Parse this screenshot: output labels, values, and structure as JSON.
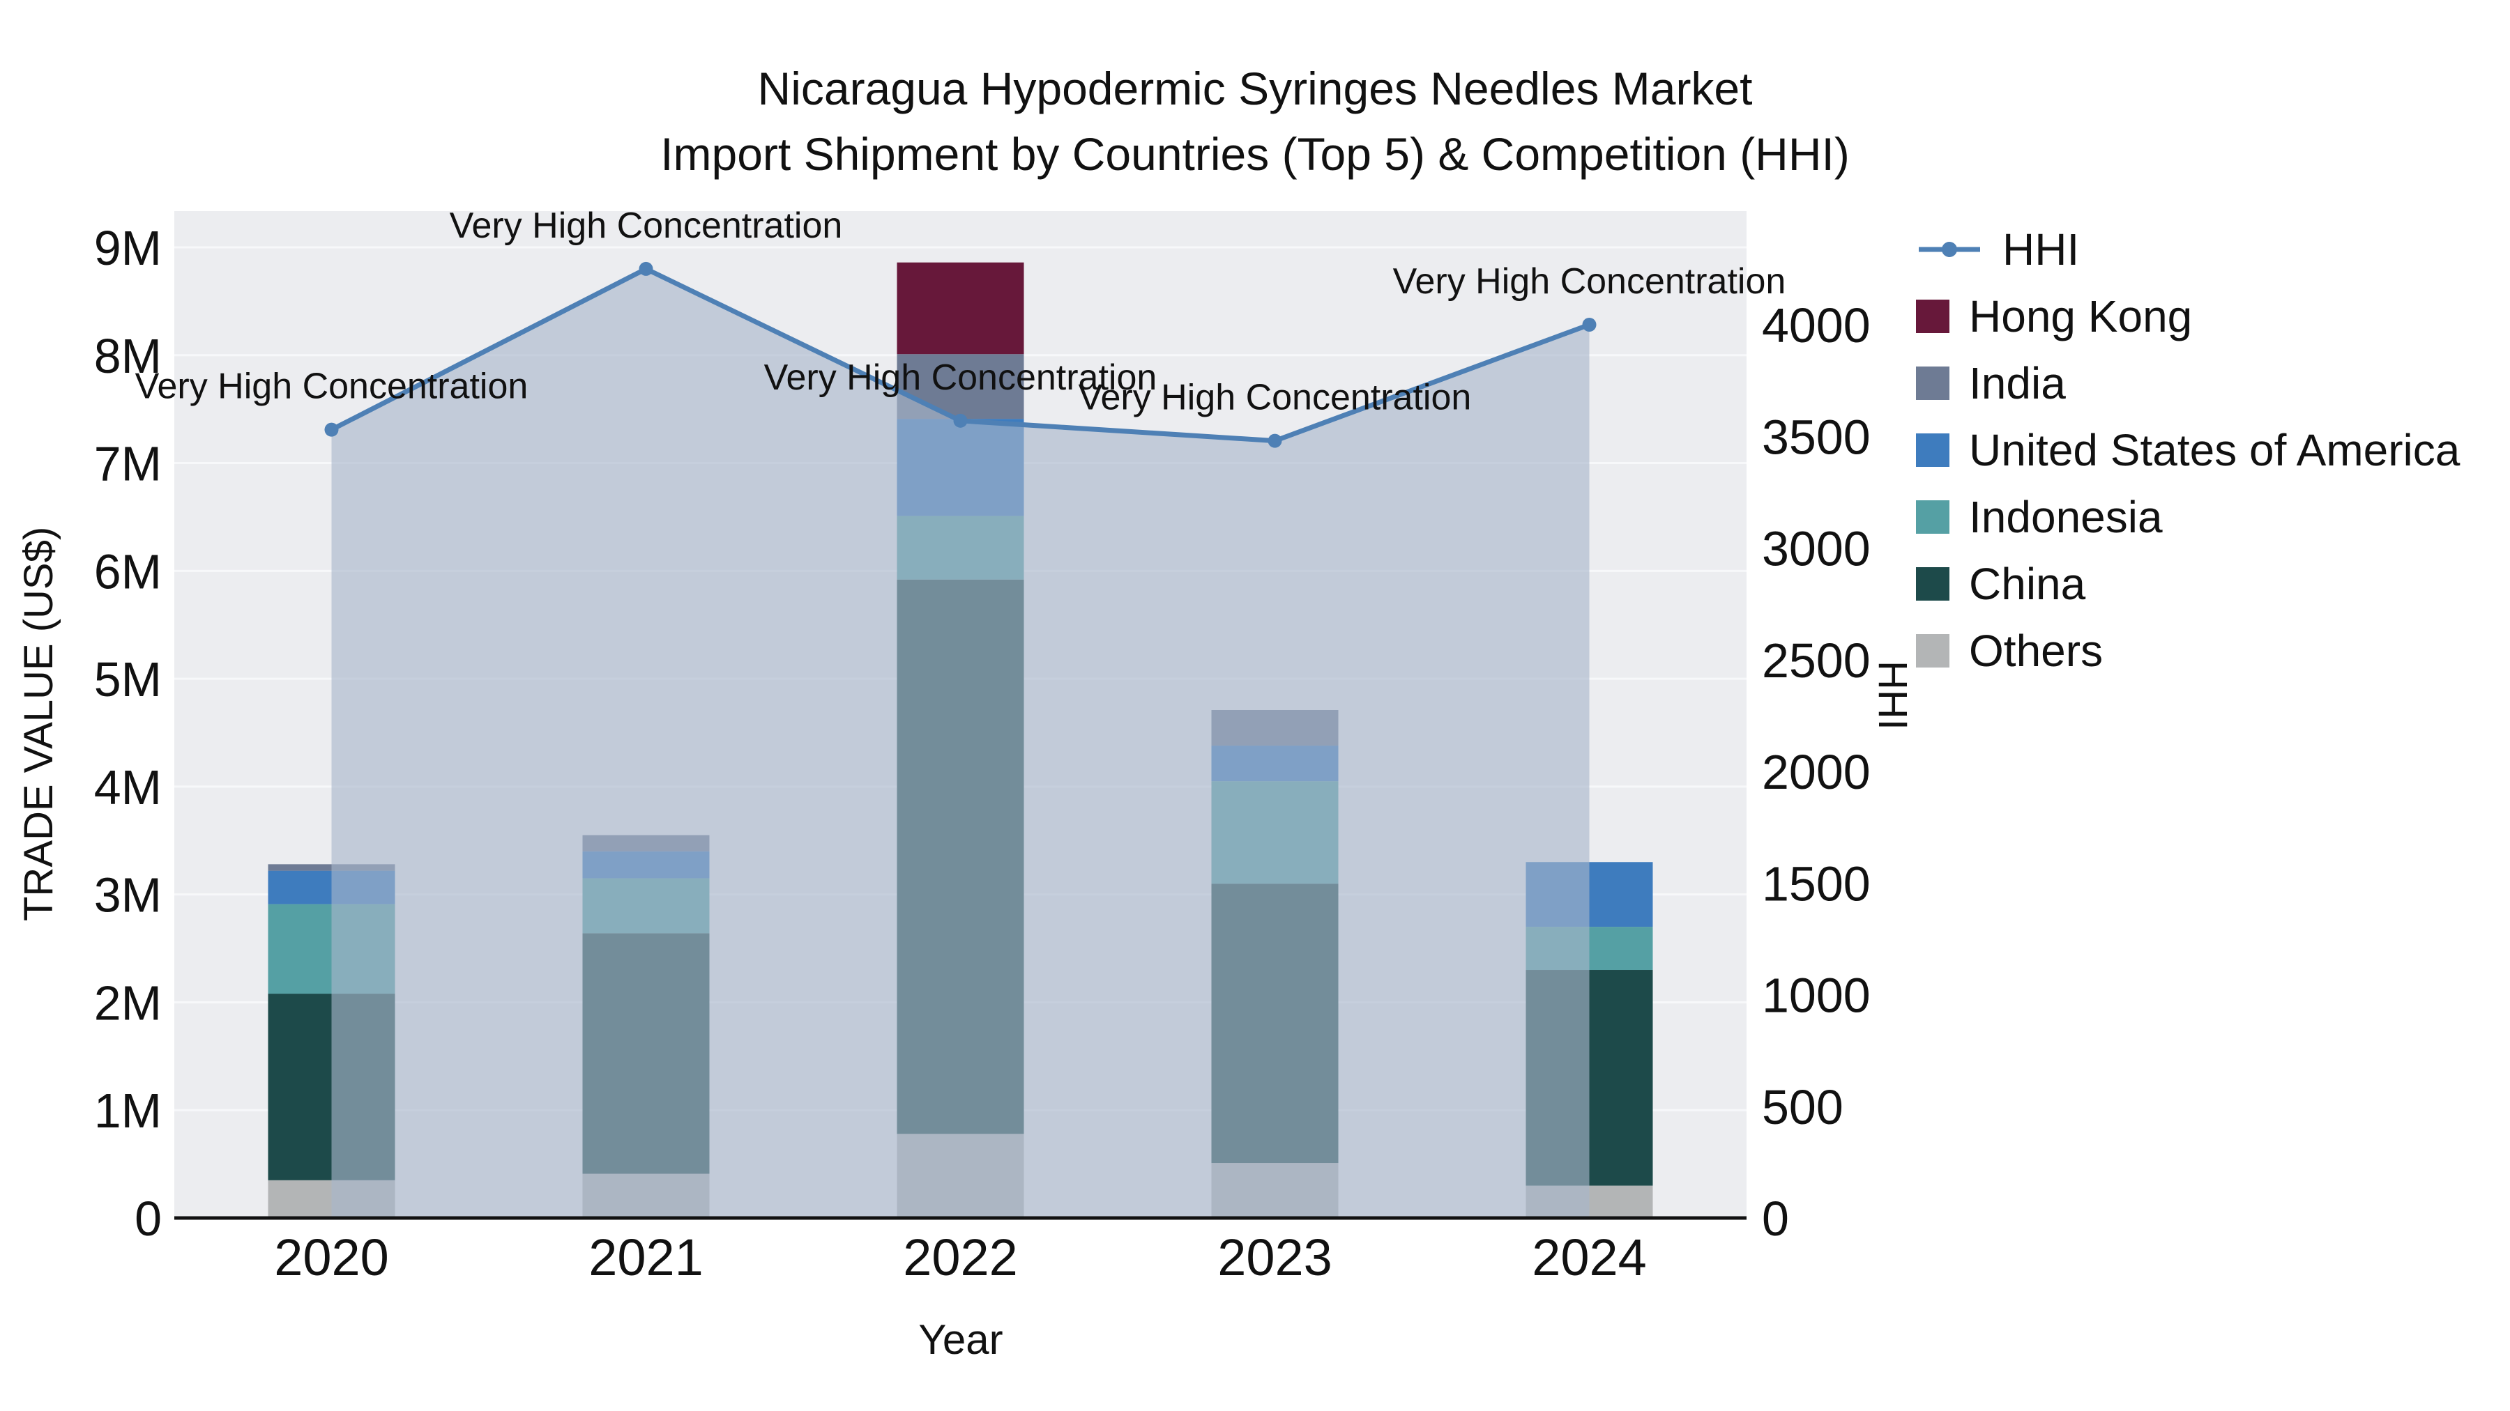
{
  "title": {
    "line1": "Nicaragua Hypodermic Syringes Needles Market",
    "line2": "Import Shipment by Countries (Top 5) & Competition (HHI)"
  },
  "axes": {
    "xlabel": "Year",
    "ylabel_left": "TRADE VALUE (US$)",
    "ylabel_right": "HHI"
  },
  "chart_data": {
    "type": "bar+line",
    "title": "Nicaragua Hypodermic Syringes Needles Market — Import Shipment by Countries (Top 5) & Competition (HHI)",
    "categories": [
      "2020",
      "2021",
      "2022",
      "2023",
      "2024"
    ],
    "unit_left": "US$ millions",
    "xlabel": "Year",
    "ylabel_left": "TRADE VALUE (US$)",
    "ylabel_right": "HHI",
    "ylim_left_millions": [
      0,
      9
    ],
    "ylim_right": [
      0,
      4000
    ],
    "y_left_ticks": [
      "0",
      "1M",
      "2M",
      "3M",
      "4M",
      "5M",
      "6M",
      "7M",
      "8M",
      "9M"
    ],
    "y_right_ticks": [
      "0",
      "500",
      "1000",
      "1500",
      "2000",
      "2500",
      "3000",
      "3500",
      "4000"
    ],
    "plot_bg": "#ecedf0",
    "grid_color": "#f7f8fa",
    "series": [
      {
        "name": "Others",
        "color": "#b3b5b6",
        "values": [
          0.35,
          0.41,
          0.78,
          0.51,
          0.3
        ]
      },
      {
        "name": "China",
        "color": "#1d4a4a",
        "values": [
          1.73,
          2.23,
          5.14,
          2.59,
          2.0
        ]
      },
      {
        "name": "Indonesia",
        "color": "#55a0a4",
        "values": [
          0.83,
          0.51,
          0.59,
          0.95,
          0.4
        ]
      },
      {
        "name": "United States of America",
        "color": "#3e7cbe",
        "values": [
          0.31,
          0.25,
          0.9,
          0.33,
          0.6
        ]
      },
      {
        "name": "India",
        "color": "#6e7b94",
        "values": [
          0.06,
          0.15,
          0.6,
          0.33,
          0.0
        ]
      },
      {
        "name": "Hong Kong",
        "color": "#67183a",
        "values": [
          0.0,
          0.0,
          0.85,
          0.0,
          0.0
        ]
      }
    ],
    "hhi": {
      "name": "HHI",
      "color": "#4e80b5",
      "area_fill": "rgba(168,183,204,0.62)",
      "values": [
        3530,
        4250,
        3570,
        3480,
        4000
      ],
      "annotation": "Very High Concentration"
    }
  },
  "legend": {
    "items": [
      {
        "label": "HHI",
        "color": "#4e80b5",
        "glyph": "line"
      },
      {
        "label": "Hong Kong",
        "color": "#67183a",
        "glyph": "swatch"
      },
      {
        "label": "India",
        "color": "#6e7b94",
        "glyph": "swatch"
      },
      {
        "label": "United States of America",
        "color": "#3e7cbe",
        "glyph": "swatch"
      },
      {
        "label": "Indonesia",
        "color": "#55a0a4",
        "glyph": "swatch"
      },
      {
        "label": "China",
        "color": "#1d4a4a",
        "glyph": "swatch"
      },
      {
        "label": "Others",
        "color": "#b3b5b6",
        "glyph": "swatch"
      }
    ]
  }
}
